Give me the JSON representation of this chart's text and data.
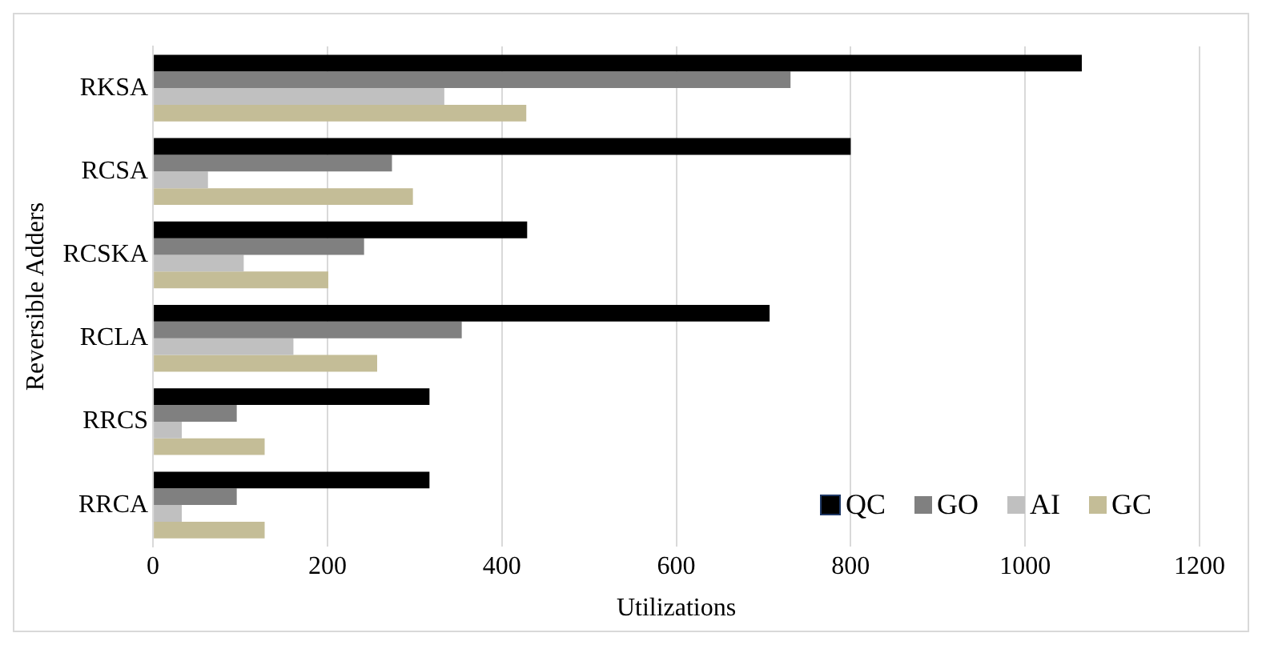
{
  "chart_data": {
    "type": "bar",
    "orientation": "horizontal",
    "xlabel": "Utilizations",
    "ylabel": "Reversible Adders",
    "categories": [
      "RKSA",
      "RCSA",
      "RCSKA",
      "RCLA",
      "RRCS",
      "RRCA"
    ],
    "series": [
      {
        "name": "QC",
        "color": "#000000",
        "values": [
          1065,
          800,
          429,
          707,
          317,
          317
        ]
      },
      {
        "name": "GO",
        "color": "#808080",
        "values": [
          731,
          274,
          242,
          354,
          96,
          96
        ]
      },
      {
        "name": "AI",
        "color": "#c0c0c0",
        "values": [
          334,
          63,
          104,
          161,
          33,
          33
        ]
      },
      {
        "name": "GC",
        "color": "#c4bd97",
        "values": [
          428,
          298,
          201,
          257,
          128,
          128
        ]
      }
    ],
    "xlim": [
      0,
      1200
    ],
    "xticks": [
      0,
      200,
      400,
      600,
      800,
      1000,
      1200
    ],
    "grid": "x",
    "legend": "bottom right"
  }
}
